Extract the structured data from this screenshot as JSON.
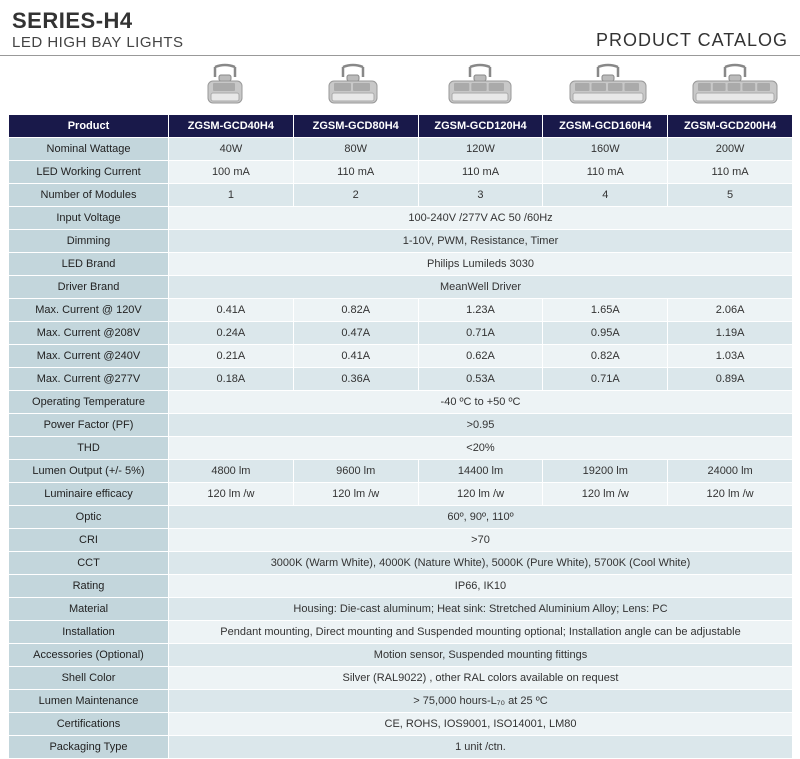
{
  "header": {
    "series": "SERIES-H4",
    "subtitle": "LED HIGH BAY LIGHTS",
    "catalog": "PRODUCT CATALOG"
  },
  "colors": {
    "header_bg": "#19194a",
    "header_text": "#ffffff",
    "label_bg": "#c3d6dc",
    "row_odd_bg": "#edf3f5",
    "row_even_bg": "#dbe7eb",
    "border": "#ffffff"
  },
  "columns": [
    "Product",
    "ZGSM-GCD40H4",
    "ZGSM-GCD80H4",
    "ZGSM-GCD120H4",
    "ZGSM-GCD160H4",
    "ZGSM-GCD200H4"
  ],
  "rows": [
    {
      "label": "Nominal Wattage",
      "values": [
        "40W",
        "80W",
        "120W",
        "160W",
        "200W"
      ]
    },
    {
      "label": "LED Working Current",
      "values": [
        "100 mA",
        "110 mA",
        "110 mA",
        "110 mA",
        "110 mA"
      ]
    },
    {
      "label": "Number of Modules",
      "values": [
        "1",
        "2",
        "3",
        "4",
        "5"
      ]
    },
    {
      "label": "Input Voltage",
      "span": "100-240V /277V AC 50 /60Hz"
    },
    {
      "label": "Dimming",
      "span": "1-10V, PWM, Resistance, Timer"
    },
    {
      "label": "LED Brand",
      "span": "Philips Lumileds 3030"
    },
    {
      "label": "Driver Brand",
      "span": "MeanWell Driver"
    },
    {
      "label": "Max. Current @ 120V",
      "values": [
        "0.41A",
        "0.82A",
        "1.23A",
        "1.65A",
        "2.06A"
      ]
    },
    {
      "label": "Max. Current @208V",
      "values": [
        "0.24A",
        "0.47A",
        "0.71A",
        "0.95A",
        "1.19A"
      ]
    },
    {
      "label": "Max. Current @240V",
      "values": [
        "0.21A",
        "0.41A",
        "0.62A",
        "0.82A",
        "1.03A"
      ]
    },
    {
      "label": "Max. Current @277V",
      "values": [
        "0.18A",
        "0.36A",
        "0.53A",
        "0.71A",
        "0.89A"
      ]
    },
    {
      "label": "Operating Temperature",
      "span": "-40 ºC to +50 ºC"
    },
    {
      "label": "Power Factor (PF)",
      "span": ">0.95"
    },
    {
      "label": "THD",
      "span": "<20%"
    },
    {
      "label": "Lumen Output (+/- 5%)",
      "values": [
        "4800 lm",
        "9600 lm",
        "14400 lm",
        "19200 lm",
        "24000 lm"
      ]
    },
    {
      "label": "Luminaire efficacy",
      "values": [
        "120 lm /w",
        "120 lm /w",
        "120 lm /w",
        "120 lm /w",
        "120 lm /w"
      ]
    },
    {
      "label": "Optic",
      "span": "60º, 90º, 110º"
    },
    {
      "label": "CRI",
      "span": ">70"
    },
    {
      "label": "CCT",
      "span": "3000K (Warm White), 4000K (Nature White), 5000K (Pure White), 5700K (Cool White)"
    },
    {
      "label": "Rating",
      "span": "IP66, IK10"
    },
    {
      "label": "Material",
      "span": "Housing: Die-cast aluminum; Heat sink: Stretched Aluminium Alloy; Lens: PC"
    },
    {
      "label": "Installation",
      "span": "Pendant mounting, Direct mounting and Suspended mounting optional; Installation angle can be adjustable"
    },
    {
      "label": "Accessories (Optional)",
      "span": "Motion sensor, Suspended mounting fittings"
    },
    {
      "label": "Shell Color",
      "span": "Silver (RAL9022) , other RAL colors available on request"
    },
    {
      "label": "Lumen Maintenance",
      "span": "> 75,000 hours-L₇₀ at 25 ºC"
    },
    {
      "label": "Certifications",
      "span": "CE, ROHS, IOS9001, ISO14001, LM80"
    },
    {
      "label": "Packaging Type",
      "span": "1 unit /ctn."
    }
  ],
  "image_count": 5
}
